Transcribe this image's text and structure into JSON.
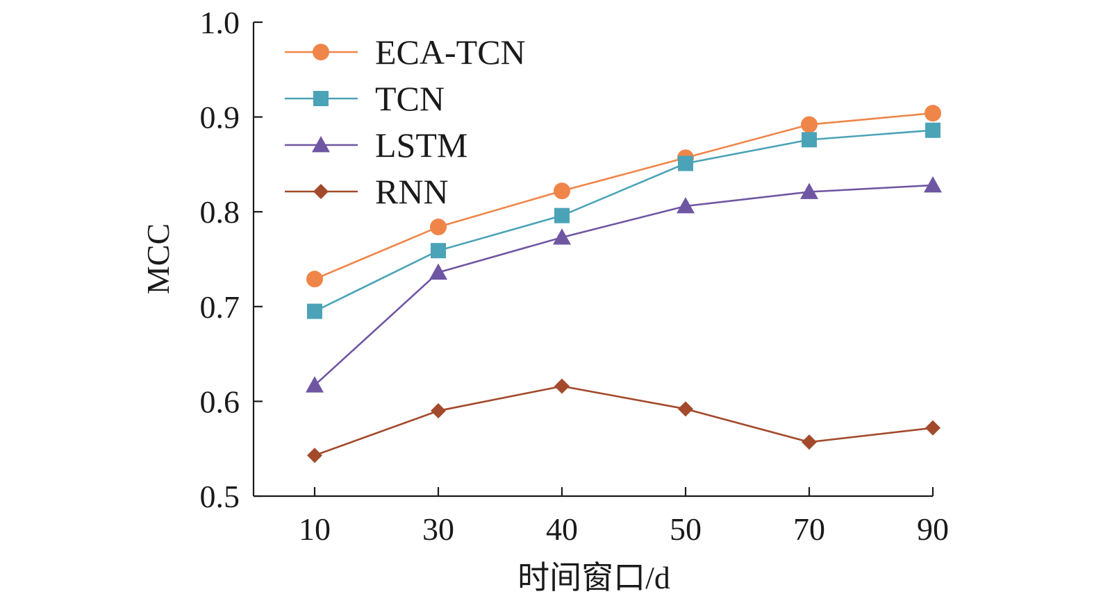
{
  "chart_data": {
    "type": "line",
    "title": "",
    "xlabel": "时间窗口/d",
    "ylabel": "MCC",
    "categories": [
      "10",
      "30",
      "40",
      "50",
      "70",
      "90"
    ],
    "ylim": [
      0.5,
      1.0
    ],
    "yticks": [
      "0.5",
      "0.6",
      "0.7",
      "0.8",
      "0.9",
      "1.0"
    ],
    "grid": false,
    "legend_position": "top-left",
    "series": [
      {
        "name": "ECA-TCN",
        "color": "#ef8548",
        "marker": "circle",
        "values": [
          0.729,
          0.784,
          0.822,
          0.857,
          0.892,
          0.904
        ]
      },
      {
        "name": "TCN",
        "color": "#4ba3b7",
        "marker": "square",
        "values": [
          0.695,
          0.759,
          0.796,
          0.851,
          0.876,
          0.886
        ]
      },
      {
        "name": "LSTM",
        "color": "#6f56a3",
        "marker": "triangle",
        "values": [
          0.617,
          0.736,
          0.773,
          0.806,
          0.821,
          0.828
        ]
      },
      {
        "name": "RNN",
        "color": "#a34a2c",
        "marker": "diamond",
        "values": [
          0.543,
          0.59,
          0.616,
          0.592,
          0.557,
          0.572
        ]
      }
    ]
  }
}
